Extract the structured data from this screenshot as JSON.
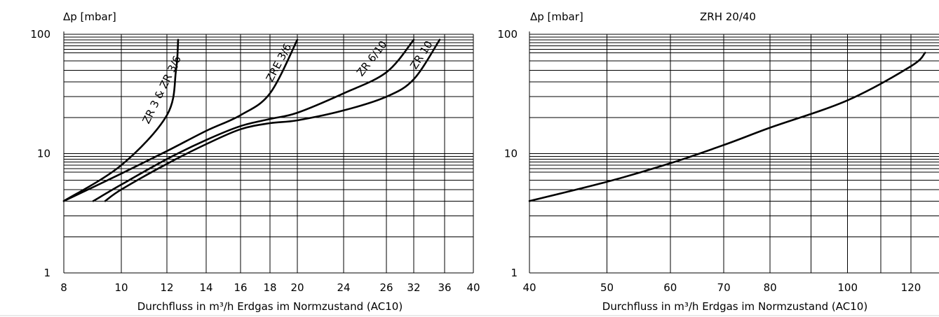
{
  "chart_data": [
    {
      "type": "line",
      "title": "",
      "ylabel": "Δp [mbar]",
      "xlabel": "Durchfluss in m³/h Erdgas im Normzustand (AC10)",
      "yscale": "log",
      "ylim": [
        1,
        100
      ],
      "ytick_labels": [
        "1",
        "10",
        "100"
      ],
      "xtick_labels": [
        "8",
        "10",
        "12",
        "14",
        "16",
        "18",
        "20",
        "24",
        "26",
        "32",
        "36",
        "40"
      ],
      "grid": true,
      "series": [
        {
          "name": "ZR 3 & ZR 3/6",
          "points": [
            {
              "x": "8",
              "y": 4.0
            },
            {
              "x": "10",
              "y": 8.0
            },
            {
              "x": "12",
              "y": 21.0
            },
            {
              "x": "12.45",
              "y": 50.0
            },
            {
              "x": "12.5",
              "y": 90.0
            }
          ]
        },
        {
          "name": "ZRE 3/6",
          "points": [
            {
              "x": "8",
              "y": 4.0
            },
            {
              "x": "10",
              "y": 6.8
            },
            {
              "x": "12",
              "y": 10.5
            },
            {
              "x": "14",
              "y": 15.5
            },
            {
              "x": "16",
              "y": 21.0
            },
            {
              "x": "18",
              "y": 32.0
            },
            {
              "x": "20",
              "y": 90.0
            }
          ]
        },
        {
          "name": "ZR 6/10",
          "points": [
            {
              "x": "9",
              "y": 4.0
            },
            {
              "x": "10",
              "y": 5.5
            },
            {
              "x": "12",
              "y": 9.0
            },
            {
              "x": "14",
              "y": 13.0
            },
            {
              "x": "16",
              "y": 17.0
            },
            {
              "x": "18",
              "y": 19.5
            },
            {
              "x": "20",
              "y": 22.0
            },
            {
              "x": "24",
              "y": 32.0
            },
            {
              "x": "26",
              "y": 48.0
            },
            {
              "x": "32",
              "y": 90.0
            }
          ]
        },
        {
          "name": "ZR 10",
          "points": [
            {
              "x": "9.5",
              "y": 4.0
            },
            {
              "x": "10",
              "y": 5.0
            },
            {
              "x": "12",
              "y": 8.2
            },
            {
              "x": "14",
              "y": 12.0
            },
            {
              "x": "16",
              "y": 16.0
            },
            {
              "x": "18",
              "y": 18.0
            },
            {
              "x": "20",
              "y": 19.0
            },
            {
              "x": "24",
              "y": 23.0
            },
            {
              "x": "26",
              "y": 30.0
            },
            {
              "x": "32",
              "y": 42.0
            },
            {
              "x": "35",
              "y": 90.0
            }
          ]
        }
      ]
    },
    {
      "type": "line",
      "title": "ZRH 20/40",
      "ylabel": "Δp [mbar]",
      "xlabel": "Durchfluss in m³/h Erdgas im Normzustand (AC10)",
      "yscale": "log",
      "ylim": [
        1,
        100
      ],
      "ytick_labels": [
        "1",
        "10",
        "100"
      ],
      "xtick_labels": [
        "40",
        "50",
        "60",
        "70",
        "80",
        "100",
        "120"
      ],
      "grid": true,
      "series": [
        {
          "name": "",
          "points": [
            {
              "x": 40,
              "y": 4.0
            },
            {
              "x": 50,
              "y": 5.8
            },
            {
              "x": 60,
              "y": 8.3
            },
            {
              "x": 70,
              "y": 11.8
            },
            {
              "x": 80,
              "y": 16.5
            },
            {
              "x": 100,
              "y": 28.0
            },
            {
              "x": 120,
              "y": 54.0
            },
            {
              "x": 125,
              "y": 70.0
            }
          ]
        }
      ]
    }
  ]
}
